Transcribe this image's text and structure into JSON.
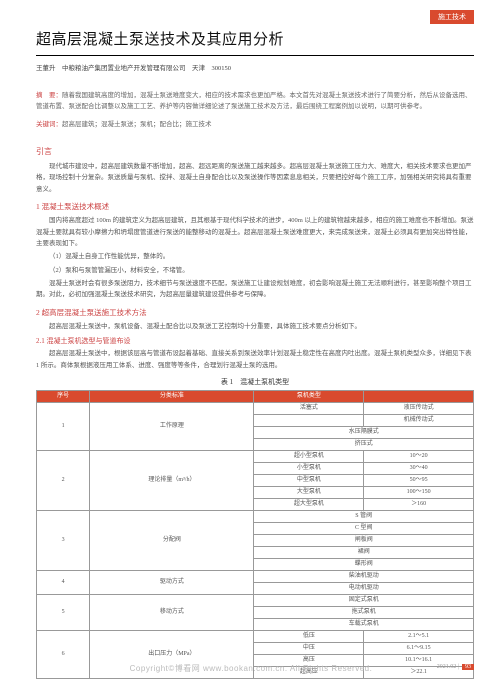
{
  "tag": "施工技术",
  "title": "超高层混凝土泵送技术及其应用分析",
  "author_line": "王董升　中粮粮油产集团置业地产开发管理有限公司　天津　300150",
  "abstract_label": "摘　要：",
  "abstract_text": "随着我国建筑高度的增加，混凝土泵送难度变大，相应的技术需求也更加严格。本文首先对混凝土泵送技术进行了简要分析，然后从设备选用、管道布置、泵送配合比调整以及施工工艺、养护等内容做详细论述了泵送施工技术及方法，最后围绕工程案例加以说明，以期可供参考。",
  "keywords_label": "关键词：",
  "keywords_text": "超高层建筑；混凝土泵送；泵机；配合比；施工技术",
  "intro_h": "引言",
  "intro_p": "现代城市建设中，超高层建筑数量不断增加，超高、超远距离的泵送施工越来越多。超高层混凝土泵送施工压力大、难度大，相关技术要求也更加严格，现场控制十分复杂。泵送质量与泵机、搅拌、混凝土自身配合比以及泵送操作等因素息息相关，只要把控好每个施工工序，加强相关研究将具有重要意义。",
  "sec1_h": "1 混凝土泵送技术概述",
  "sec1_p1": "国内将高度超过 100m 的建筑定义为超高层建筑，且其根基于现代科学技术的进步，400m 以上的建筑物越来越多，相应的施工难度也不断增加。泵送混凝土要就具有较小摩擦力和坍塌度管道进行泵送的能整移动的混凝土。超高层混凝土泵送难度更大，来完成泵送来，混凝土必须具有更加突出特性能，主要表现如下。",
  "sec1_li1": "（1）混凝土自身工作性能优异，整体的。",
  "sec1_li2": "（2）泵和与泵管管漏压小，材料安全，不堵管。",
  "sec1_p2": "混凝土泵送时会有很多泵送阻力，技术细节与泵送速度不匹配，泵送施工让建设规划难度，初会影响混凝土施工无法顺利进行，甚至影响整个项目工期。对此，必初加强混凝土泵送技术研究，为超高层量建筑建设提供参考与保障。",
  "sec2_h": "2 超高层混凝土泵送施工技术方法",
  "sec2_p": "超高层混凝土泵送中，泵机设备、混凝土配合比以及泵送工艺控制均十分重要，具体施工技术要点分析如下。",
  "sec21_h": "2.1 混凝土泵机选型与管道布设",
  "sec21_p": "超高层混凝土泵送中，根据该层高与管道布设起着基础、直接关系到泵送效率计划混凝土稳定性在高度内吐出度。混凝土泵机类型众多，详细见下表 1 所示。商体泵根据液压用工体系、进度、强度等等条件，合理划行混凝土泵的选用。",
  "table_caption": "表 1　混凝土泵机类型",
  "table": {
    "header_bg": "#d94a2e",
    "columns": [
      "序号",
      "分类标准",
      "泵机类型",
      ""
    ],
    "rows": [
      {
        "no": "1",
        "cat": "工作原理",
        "items": [
          [
            "活塞式",
            "液压传动式"
          ],
          [
            "",
            "机械传动式"
          ],
          [
            "水压隔膜式",
            ""
          ],
          [
            "挤压式",
            ""
          ]
        ]
      },
      {
        "no": "2",
        "cat": "理论排量（m³/h）",
        "items": [
          [
            "超小型泵机",
            "10～20"
          ],
          [
            "小型泵机",
            "30～40"
          ],
          [
            "中型泵机",
            "50～95"
          ],
          [
            "大型泵机",
            "100～150"
          ],
          [
            "超大型泵机",
            "＞160"
          ]
        ]
      },
      {
        "no": "3",
        "cat": "分配阀",
        "items": [
          [
            "S 管阀",
            ""
          ],
          [
            "C 型阀",
            ""
          ],
          [
            "闸板阀",
            ""
          ],
          [
            "裙阀",
            ""
          ],
          [
            "蝶形阀",
            ""
          ]
        ]
      },
      {
        "no": "4",
        "cat": "驱动方式",
        "items": [
          [
            "柴油机驱动",
            ""
          ],
          [
            "电动机驱动",
            ""
          ]
        ]
      },
      {
        "no": "5",
        "cat": "移动方式",
        "items": [
          [
            "固定式泵机",
            ""
          ],
          [
            "拖式泵机",
            ""
          ],
          [
            "车载式泵机",
            ""
          ]
        ]
      },
      {
        "no": "6",
        "cat": "出口压力（MPa）",
        "items": [
          [
            "低压",
            "2.1～5.1"
          ],
          [
            "中压",
            "6.1～9.15"
          ],
          [
            "高压",
            "10.1～16.1"
          ],
          [
            "超高压",
            "＞22.1"
          ]
        ]
      }
    ]
  },
  "footer_issue": "2021.02 |",
  "footer_page": "93",
  "watermark": "Copyright©博看网 www.bookan.com.cn. All Rights Reserved."
}
